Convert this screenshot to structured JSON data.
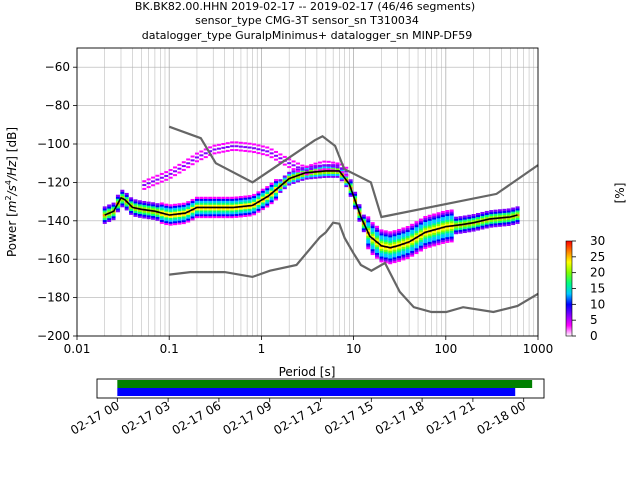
{
  "chart_data": [
    {
      "type": "heatmap",
      "title": [
        "BK.BK82.00.HHN   2019-02-17 -- 2019-02-17  (46/46 segments)",
        "sensor_type CMG-3T sensor_sn T310034",
        "datalogger_type GuralpMinimus+ datalogger_sn MINP-DF59"
      ],
      "xlabel": "Period [s]",
      "ylabel_parts": [
        "Power [",
        "m",
        "2",
        "/",
        "s",
        "4",
        "/",
        "Hz",
        "] [dB]"
      ],
      "x_scale": "log",
      "xlim": [
        0.01,
        1000
      ],
      "ylim": [
        -200,
        -50
      ],
      "x_ticks": [
        {
          "v": 0.01,
          "label": "0.01"
        },
        {
          "v": 0.1,
          "label": "0.1"
        },
        {
          "v": 1,
          "label": "1"
        },
        {
          "v": 10,
          "label": "10"
        },
        {
          "v": 100,
          "label": "100"
        },
        {
          "v": 1000,
          "label": "1000"
        }
      ],
      "y_ticks": [
        {
          "v": -60,
          "label": "−60"
        },
        {
          "v": -80,
          "label": "−80"
        },
        {
          "v": -100,
          "label": "−100"
        },
        {
          "v": -120,
          "label": "−120"
        },
        {
          "v": -140,
          "label": "−140"
        },
        {
          "v": -160,
          "label": "−160"
        },
        {
          "v": -180,
          "label": "−180"
        },
        {
          "v": -200,
          "label": "−200"
        }
      ],
      "grid": true,
      "colorbar": {
        "label": "[%]",
        "range": [
          0,
          30
        ],
        "ticks": [
          {
            "v": 0,
            "label": "0"
          },
          {
            "v": 5,
            "label": "5"
          },
          {
            "v": 10,
            "label": "10"
          },
          {
            "v": 15,
            "label": "15"
          },
          {
            "v": 20,
            "label": "20"
          },
          {
            "v": 25,
            "label": "25"
          },
          {
            "v": 30,
            "label": "30"
          }
        ],
        "colors": [
          "#ffffff",
          "#ff00ff",
          "#8000ff",
          "#0000ff",
          "#00c8ff",
          "#00ff80",
          "#80ff00",
          "#ffff00",
          "#ff8000",
          "#ff0000"
        ]
      },
      "noise_models": {
        "NHNM": [
          [
            0.1,
            -91
          ],
          [
            0.22,
            -97
          ],
          [
            0.32,
            -110
          ],
          [
            0.8,
            -120
          ],
          [
            3.8,
            -98
          ],
          [
            4.6,
            -96
          ],
          [
            6.3,
            -101
          ],
          [
            7.9,
            -113
          ],
          [
            15.4,
            -120
          ],
          [
            20,
            -138
          ],
          [
            354.8,
            -126
          ],
          [
            1000,
            -111
          ]
        ],
        "NLNM": [
          [
            0.1,
            -168
          ],
          [
            0.17,
            -166.7
          ],
          [
            0.4,
            -166.7
          ],
          [
            0.8,
            -169.2
          ],
          [
            1.24,
            -166
          ],
          [
            2.4,
            -163
          ],
          [
            4.3,
            -148.6
          ],
          [
            5,
            -146
          ],
          [
            6,
            -141
          ],
          [
            7,
            -141.5
          ],
          [
            8,
            -149
          ],
          [
            10,
            -157
          ],
          [
            12,
            -163
          ],
          [
            15.6,
            -166
          ],
          [
            21.9,
            -162
          ],
          [
            31.6,
            -177
          ],
          [
            45,
            -185
          ],
          [
            70,
            -187.5
          ],
          [
            101,
            -187.5
          ],
          [
            154,
            -185
          ],
          [
            328,
            -187.5
          ],
          [
            600,
            -184.4
          ],
          [
            1000,
            -178
          ]
        ]
      },
      "series": [
        {
          "name": "mean",
          "x": [
            0.02,
            0.025,
            0.03,
            0.033,
            0.04,
            0.05,
            0.07,
            0.1,
            0.15,
            0.2,
            0.3,
            0.5,
            0.8,
            1.2,
            2,
            3,
            5,
            7,
            9,
            12,
            15,
            20,
            25,
            30,
            40,
            60,
            100,
            150,
            200,
            300,
            500,
            600
          ],
          "y": [
            -137,
            -135,
            -128,
            -129,
            -133,
            -134,
            -135,
            -137,
            -136,
            -133,
            -133,
            -133,
            -132,
            -127,
            -118,
            -115,
            -114,
            -114,
            -121,
            -138,
            -148,
            -153,
            -154,
            -153,
            -151,
            -146,
            -143,
            -142,
            -141,
            -139,
            -138,
            -137
          ]
        },
        {
          "name": "upper-spread",
          "x": [
            0.05,
            0.1,
            0.15,
            0.2,
            0.3,
            0.5,
            0.8,
            1.2,
            2,
            3,
            4,
            5,
            6.5,
            8,
            9
          ],
          "y": [
            -122,
            -116,
            -111,
            -107,
            -103,
            -101,
            -102,
            -104,
            -110,
            -114,
            -112,
            -111,
            -112,
            -113,
            -117
          ]
        }
      ]
    },
    {
      "type": "timeline",
      "x_ticks": [
        "02-17 00",
        "02-17 03",
        "02-17 06",
        "02-17 09",
        "02-17 12",
        "02-17 15",
        "02-17 18",
        "02-17 21",
        "02-18 00"
      ],
      "tick_hours": [
        0,
        3,
        6,
        9,
        12,
        15,
        18,
        21,
        24
      ],
      "range_hours": [
        -1.2,
        25.2
      ],
      "bars": [
        {
          "color": "#008000",
          "start_hour": 0,
          "end_hour": 24.5
        },
        {
          "color": "#0000ff",
          "start_hour": 0,
          "end_hour": 23.5
        }
      ]
    }
  ]
}
